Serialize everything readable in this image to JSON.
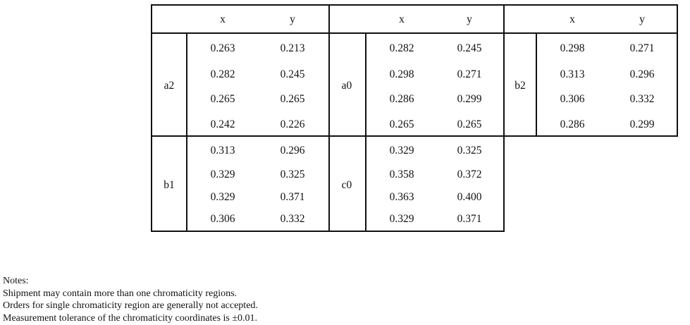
{
  "columns": [
    "x",
    "y"
  ],
  "groups": [
    {
      "label": "a2",
      "rows": [
        [
          "0.263",
          "0.213"
        ],
        [
          "0.282",
          "0.245"
        ],
        [
          "0.265",
          "0.265"
        ],
        [
          "0.242",
          "0.226"
        ]
      ]
    },
    {
      "label": "a0",
      "rows": [
        [
          "0.282",
          "0.245"
        ],
        [
          "0.298",
          "0.271"
        ],
        [
          "0.286",
          "0.299"
        ],
        [
          "0.265",
          "0.265"
        ]
      ]
    },
    {
      "label": "b2",
      "rows": [
        [
          "0.298",
          "0.271"
        ],
        [
          "0.313",
          "0.296"
        ],
        [
          "0.306",
          "0.332"
        ],
        [
          "0.286",
          "0.299"
        ]
      ]
    },
    {
      "label": "b1",
      "rows": [
        [
          "0.313",
          "0.296"
        ],
        [
          "0.329",
          "0.325"
        ],
        [
          "0.329",
          "0.371"
        ],
        [
          "0.306",
          "0.332"
        ]
      ]
    },
    {
      "label": "c0",
      "rows": [
        [
          "0.329",
          "0.325"
        ],
        [
          "0.358",
          "0.372"
        ],
        [
          "0.363",
          "0.400"
        ],
        [
          "0.329",
          "0.371"
        ]
      ]
    }
  ],
  "notes": {
    "title": "Notes:",
    "lines": [
      "Shipment may contain more than one chromaticity regions.",
      "Orders for single chromaticity region are generally not accepted.",
      "Measurement tolerance of the chromaticity coordinates is ±0.01."
    ]
  }
}
